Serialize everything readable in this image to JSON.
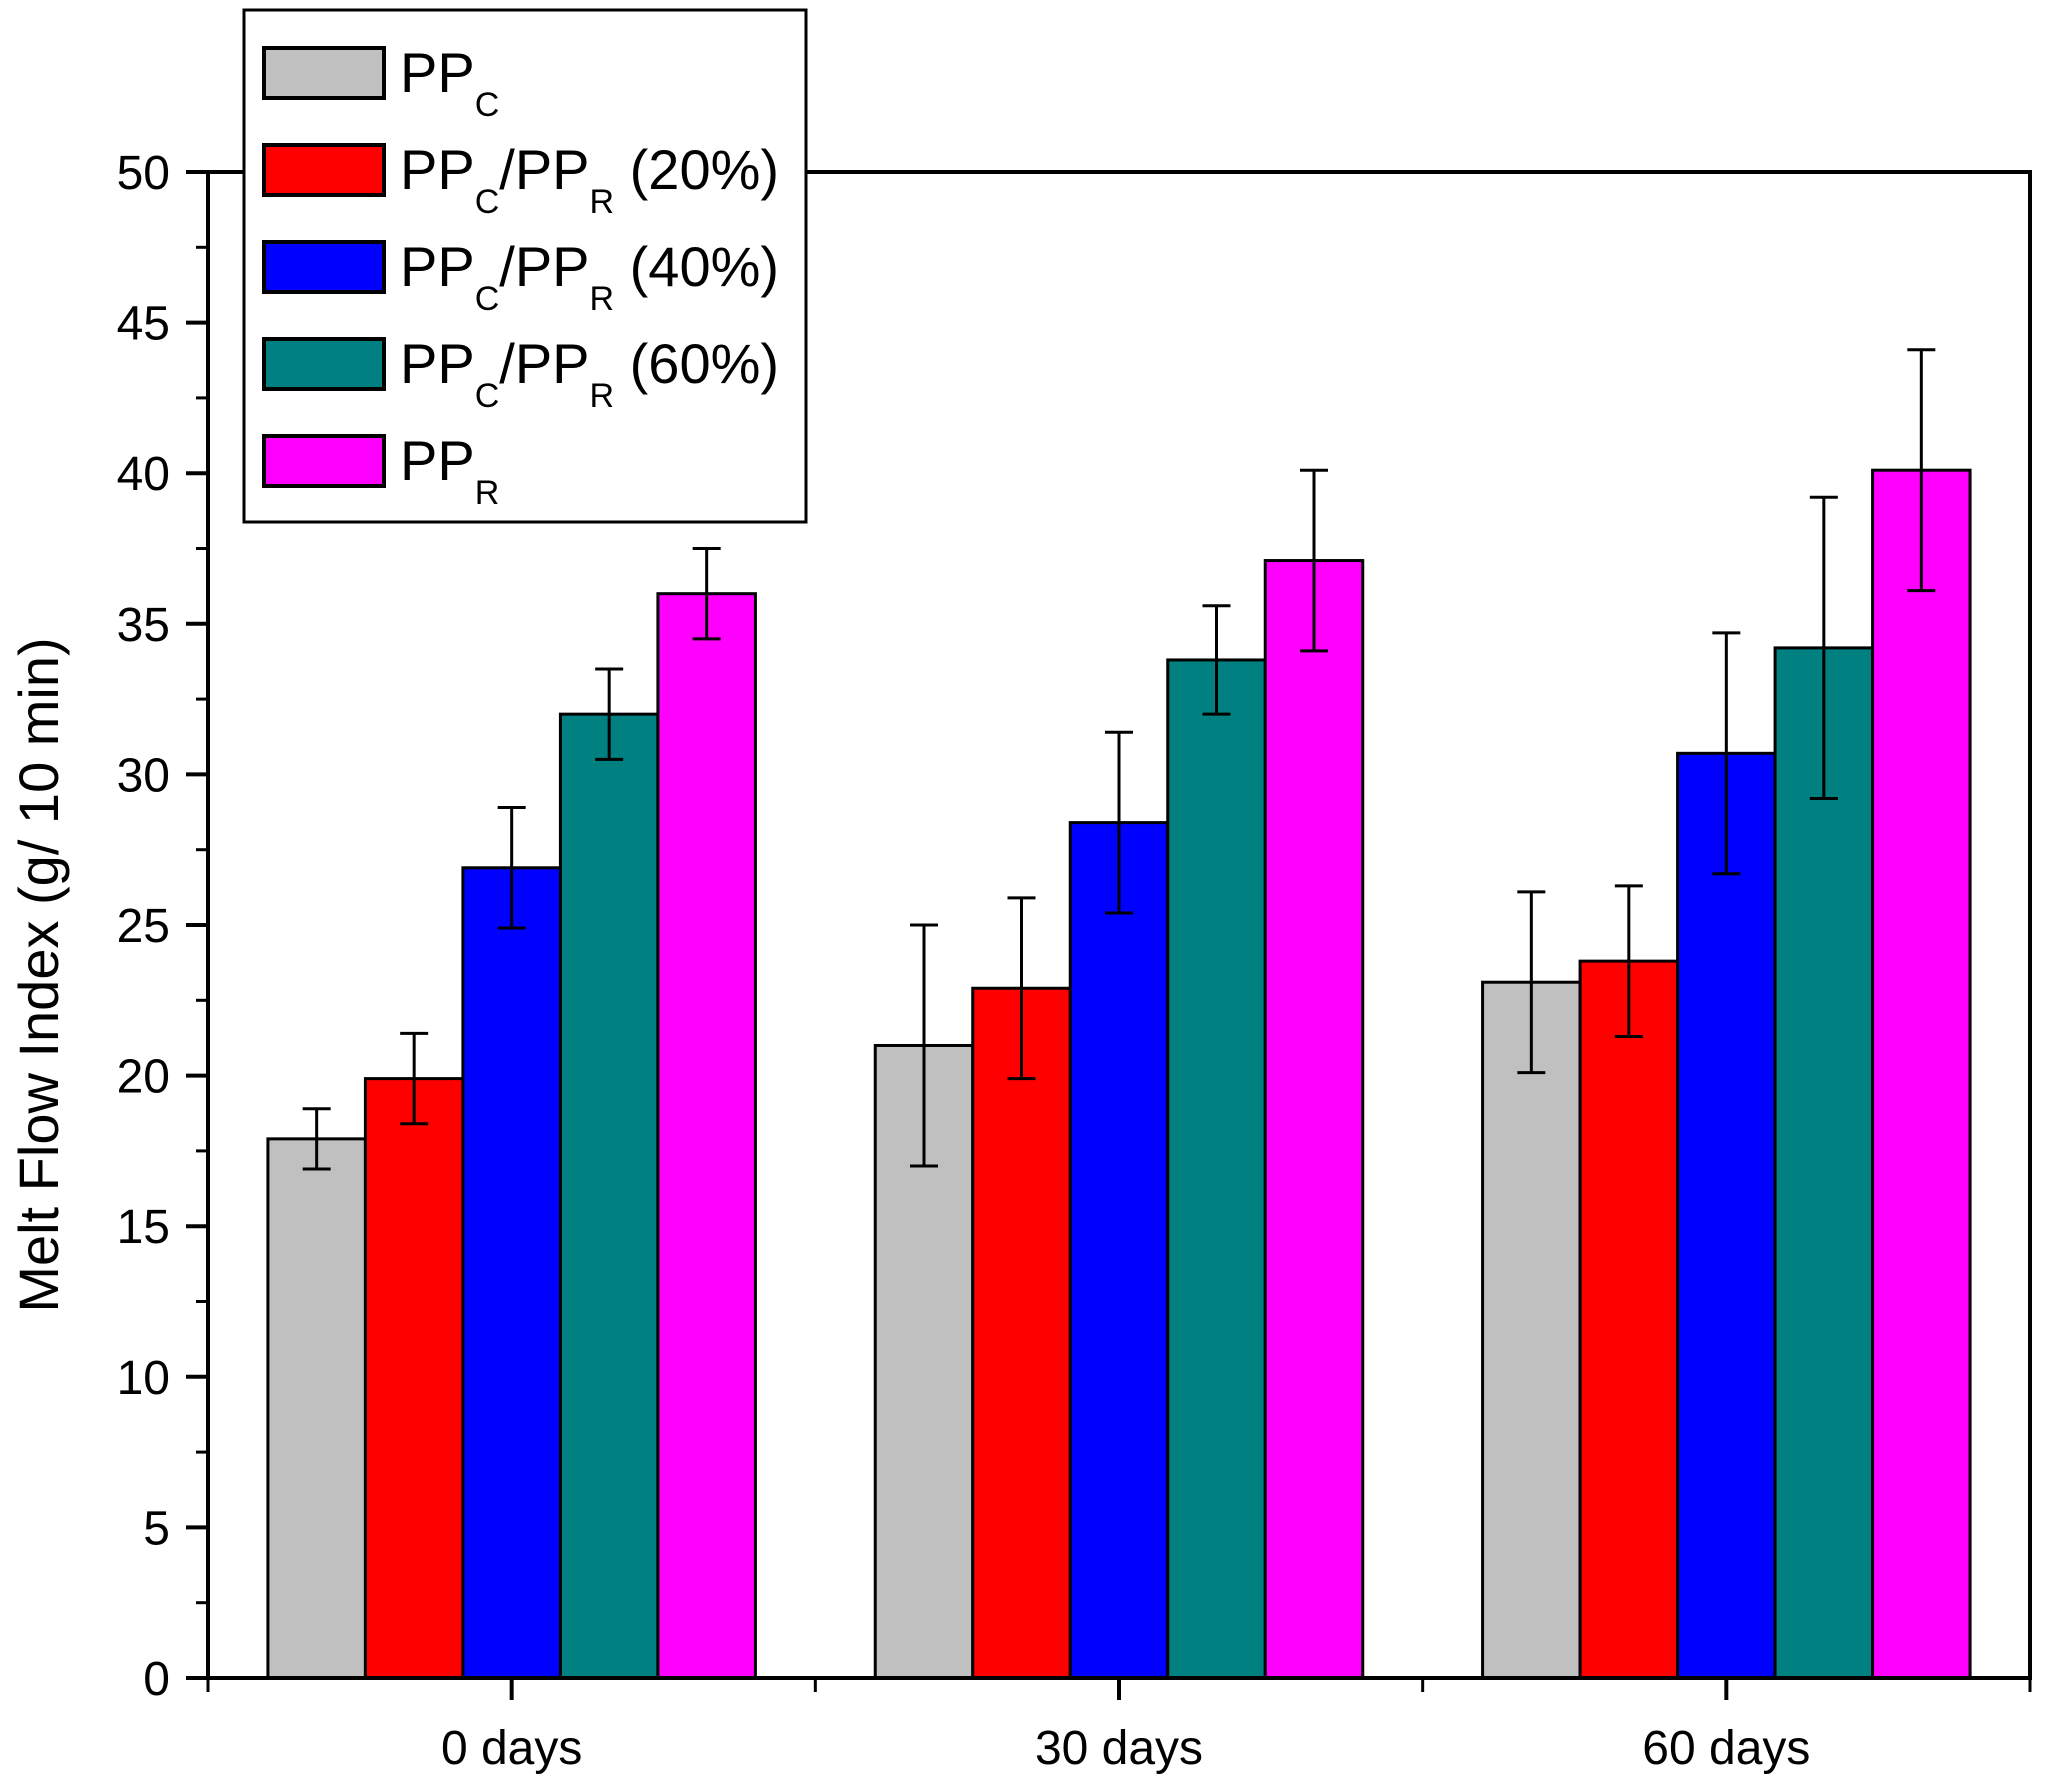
{
  "chart_data": {
    "type": "bar",
    "title": "",
    "xlabel": "",
    "ylabel": "Melt Flow Index (g/ 10 min)",
    "ylim": [
      0,
      50
    ],
    "yticks": [
      0,
      5,
      10,
      15,
      20,
      25,
      30,
      35,
      40,
      45,
      50
    ],
    "categories": [
      "0 days",
      "30 days",
      "60 days"
    ],
    "legend_position": "top-left",
    "series": [
      {
        "name": "PPC",
        "label_parts": [
          [
            "PP",
            ""
          ],
          [
            "C",
            "sub"
          ]
        ],
        "color": "#c0c0c0",
        "values": [
          17.9,
          21.0,
          23.1
        ],
        "errors": [
          1.0,
          4.0,
          3.0
        ]
      },
      {
        "name": "PPC/PPR (20%)",
        "label_parts": [
          [
            "PP",
            ""
          ],
          [
            "C",
            "sub"
          ],
          [
            "/PP",
            ""
          ],
          [
            "R",
            "sub"
          ],
          [
            " (20%)",
            ""
          ]
        ],
        "color": "#ff0000",
        "values": [
          19.9,
          22.9,
          23.8
        ],
        "errors": [
          1.5,
          3.0,
          2.5
        ]
      },
      {
        "name": "PPC/PPR (40%)",
        "label_parts": [
          [
            "PP",
            ""
          ],
          [
            "C",
            "sub"
          ],
          [
            "/PP",
            ""
          ],
          [
            "R",
            "sub"
          ],
          [
            " (40%)",
            ""
          ]
        ],
        "color": "#0000ff",
        "values": [
          26.9,
          28.4,
          30.7
        ],
        "errors": [
          2.0,
          3.0,
          4.0
        ]
      },
      {
        "name": "PPC/PPR (60%)",
        "label_parts": [
          [
            "PP",
            ""
          ],
          [
            "C",
            "sub"
          ],
          [
            "/PP",
            ""
          ],
          [
            "R",
            "sub"
          ],
          [
            " (60%)",
            ""
          ]
        ],
        "color": "#008080",
        "values": [
          32.0,
          33.8,
          34.2
        ],
        "errors": [
          1.5,
          1.8,
          5.0
        ]
      },
      {
        "name": "PPR",
        "label_parts": [
          [
            "PP",
            ""
          ],
          [
            "R",
            "sub"
          ]
        ],
        "color": "#ff00ff",
        "values": [
          36.0,
          37.1,
          40.1
        ],
        "errors": [
          1.5,
          3.0,
          4.0
        ]
      }
    ]
  }
}
